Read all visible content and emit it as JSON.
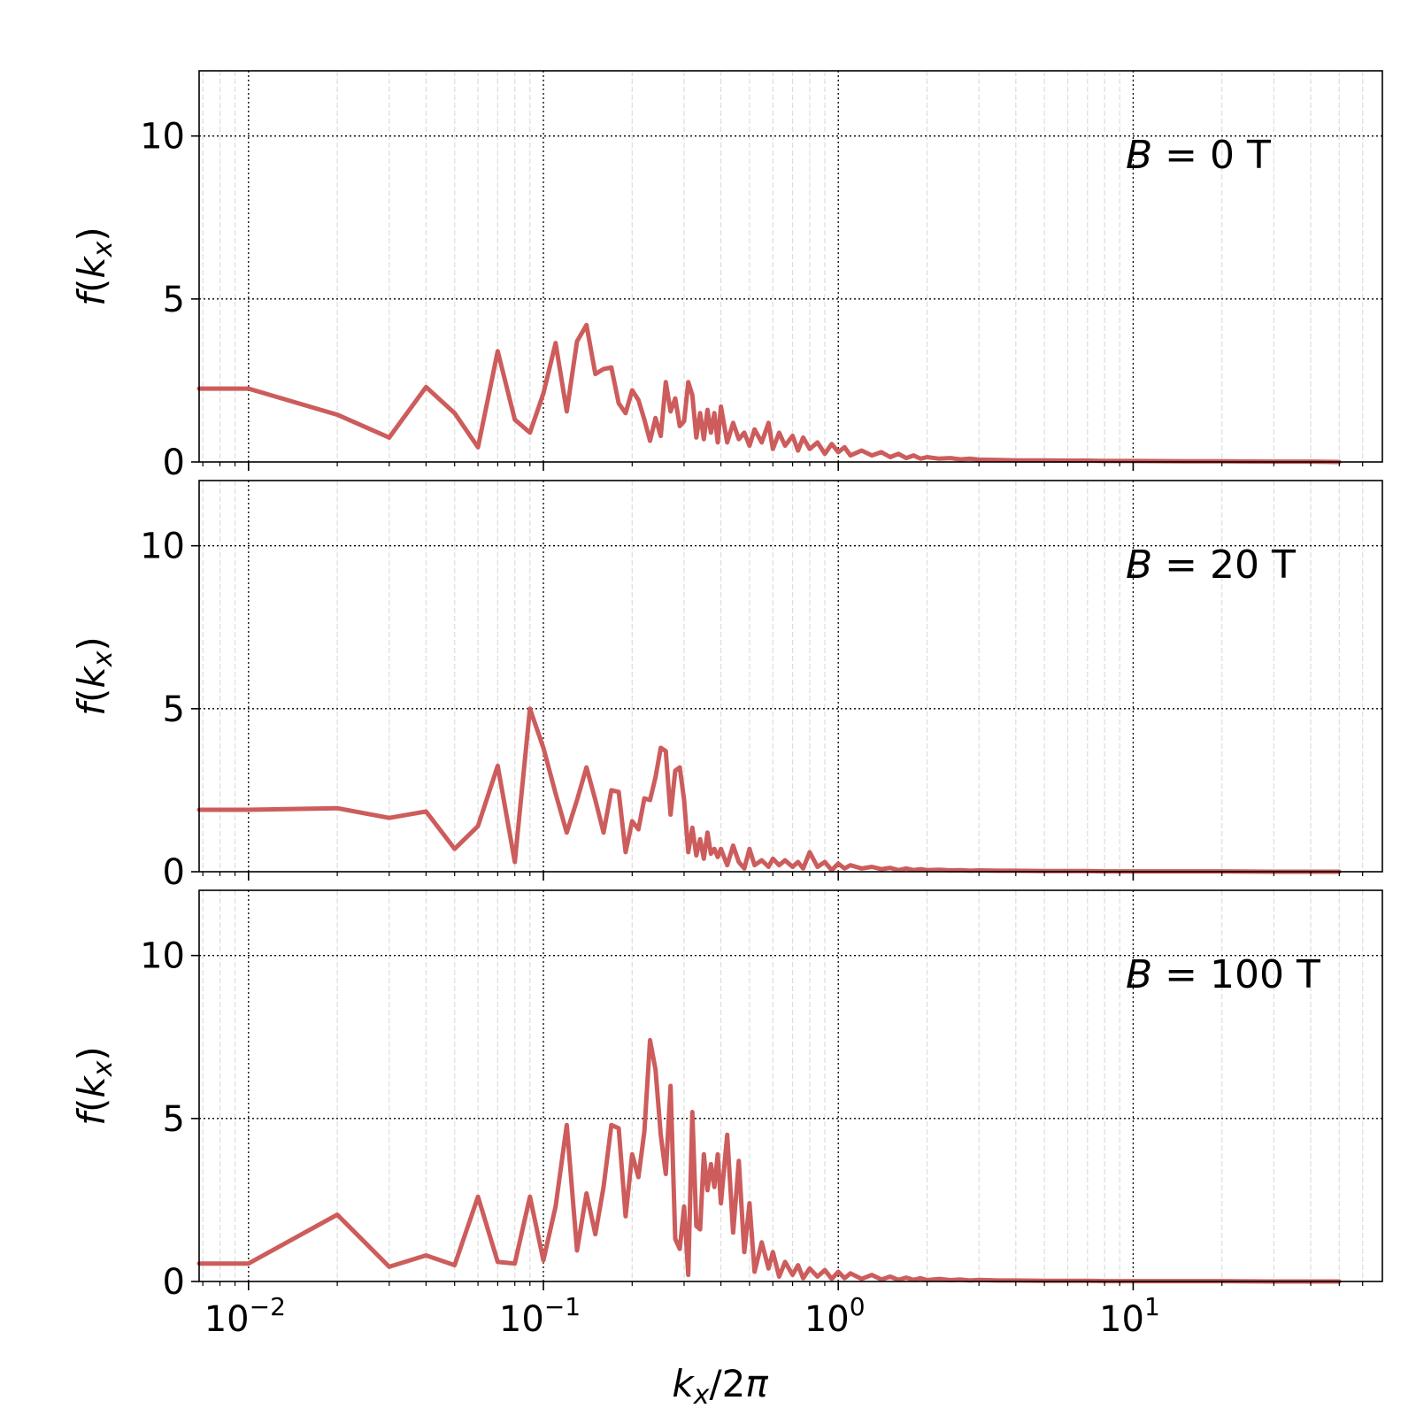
{
  "chart_data": {
    "type": "line",
    "xscale": "log",
    "xlim": [
      0.0068,
      70
    ],
    "xlabel_parts": [
      "k",
      "x",
      "/2",
      "π"
    ],
    "x_ticks": [
      {
        "value": 0.01,
        "base": "10",
        "exp": "−2"
      },
      {
        "value": 0.1,
        "base": "10",
        "exp": "−1"
      },
      {
        "value": 1,
        "base": "10",
        "exp": "0"
      },
      {
        "value": 10,
        "base": "10",
        "exp": "1"
      }
    ],
    "ylabel_parts": [
      "f",
      "(",
      "k",
      "x",
      ")"
    ],
    "ylim": [
      0,
      12
    ],
    "y_ticks": [
      0,
      5,
      10
    ],
    "grid": true,
    "line_color": "#cd5c5c",
    "panels": [
      {
        "annotation": {
          "var": "B",
          "rest": " = 0 T"
        },
        "x": [
          0.0068,
          0.01,
          0.02,
          0.03,
          0.04,
          0.05,
          0.06,
          0.07,
          0.08,
          0.09,
          0.1,
          0.11,
          0.12,
          0.13,
          0.14,
          0.15,
          0.16,
          0.17,
          0.18,
          0.19,
          0.2,
          0.21,
          0.22,
          0.23,
          0.24,
          0.25,
          0.26,
          0.27,
          0.28,
          0.29,
          0.3,
          0.31,
          0.32,
          0.33,
          0.34,
          0.35,
          0.36,
          0.37,
          0.38,
          0.39,
          0.4,
          0.42,
          0.44,
          0.46,
          0.48,
          0.5,
          0.52,
          0.55,
          0.58,
          0.6,
          0.63,
          0.66,
          0.7,
          0.73,
          0.76,
          0.8,
          0.85,
          0.9,
          0.95,
          1.0,
          1.05,
          1.1,
          1.2,
          1.3,
          1.4,
          1.5,
          1.6,
          1.7,
          1.8,
          1.9,
          2.0,
          2.2,
          2.4,
          2.6,
          2.8,
          3.0,
          3.5,
          4.0,
          5.0,
          6.0,
          7.0,
          8.0,
          10.0,
          15.0,
          20.0,
          30.0,
          40.0,
          50.0
        ],
        "y": [
          2.25,
          2.25,
          1.45,
          0.75,
          2.3,
          1.5,
          0.45,
          3.4,
          1.3,
          0.9,
          2.1,
          3.65,
          1.55,
          3.7,
          4.2,
          2.7,
          2.85,
          2.9,
          1.8,
          1.5,
          2.2,
          1.9,
          1.3,
          0.65,
          1.35,
          0.8,
          2.45,
          1.55,
          1.95,
          1.1,
          1.25,
          2.45,
          2.05,
          0.75,
          1.5,
          0.7,
          1.6,
          0.9,
          1.5,
          0.6,
          1.7,
          0.6,
          1.2,
          0.7,
          0.9,
          0.5,
          1.0,
          0.6,
          1.2,
          0.4,
          0.9,
          0.5,
          0.8,
          0.35,
          0.75,
          0.4,
          0.6,
          0.25,
          0.55,
          0.3,
          0.45,
          0.2,
          0.35,
          0.2,
          0.3,
          0.15,
          0.25,
          0.12,
          0.2,
          0.1,
          0.15,
          0.1,
          0.12,
          0.08,
          0.1,
          0.07,
          0.06,
          0.05,
          0.05,
          0.04,
          0.04,
          0.03,
          0.03,
          0.02,
          0.02,
          0.01,
          0.01,
          0.0
        ]
      },
      {
        "annotation": {
          "var": "B",
          "rest": " = 20 T"
        },
        "x": [
          0.0068,
          0.01,
          0.02,
          0.03,
          0.04,
          0.05,
          0.06,
          0.07,
          0.08,
          0.09,
          0.1,
          0.11,
          0.12,
          0.13,
          0.14,
          0.15,
          0.16,
          0.17,
          0.18,
          0.19,
          0.2,
          0.21,
          0.22,
          0.23,
          0.24,
          0.25,
          0.26,
          0.27,
          0.28,
          0.29,
          0.3,
          0.31,
          0.32,
          0.33,
          0.34,
          0.35,
          0.36,
          0.37,
          0.38,
          0.39,
          0.4,
          0.42,
          0.44,
          0.46,
          0.48,
          0.5,
          0.52,
          0.55,
          0.58,
          0.6,
          0.63,
          0.66,
          0.7,
          0.73,
          0.76,
          0.8,
          0.85,
          0.9,
          0.95,
          1.0,
          1.05,
          1.1,
          1.2,
          1.3,
          1.4,
          1.5,
          1.6,
          1.7,
          1.8,
          1.9,
          2.0,
          2.2,
          2.4,
          2.6,
          2.8,
          3.0,
          3.5,
          4.0,
          5.0,
          6.0,
          7.0,
          8.0,
          10.0,
          15.0,
          20.0,
          30.0,
          40.0,
          50.0
        ],
        "y": [
          1.9,
          1.9,
          1.95,
          1.65,
          1.85,
          0.7,
          1.4,
          3.25,
          0.3,
          5.0,
          3.8,
          2.4,
          1.2,
          2.2,
          3.2,
          2.2,
          1.2,
          2.5,
          2.45,
          0.6,
          1.55,
          1.3,
          2.25,
          2.2,
          2.9,
          3.8,
          3.7,
          1.75,
          3.1,
          3.2,
          2.2,
          0.6,
          1.35,
          0.5,
          1.0,
          0.4,
          1.2,
          0.55,
          0.7,
          0.45,
          0.7,
          0.2,
          0.8,
          0.3,
          0.1,
          0.7,
          0.2,
          0.35,
          0.15,
          0.4,
          0.2,
          0.35,
          0.15,
          0.3,
          0.1,
          0.6,
          0.15,
          0.3,
          0.05,
          0.25,
          0.1,
          0.2,
          0.1,
          0.15,
          0.08,
          0.12,
          0.05,
          0.1,
          0.05,
          0.08,
          0.05,
          0.06,
          0.04,
          0.05,
          0.03,
          0.04,
          0.03,
          0.03,
          0.02,
          0.02,
          0.02,
          0.01,
          0.01,
          0.01,
          0.01,
          0.0,
          0.0,
          0.0
        ]
      },
      {
        "annotation": {
          "var": "B",
          "rest": " = 100 T"
        },
        "x": [
          0.0068,
          0.01,
          0.02,
          0.03,
          0.04,
          0.05,
          0.06,
          0.07,
          0.08,
          0.09,
          0.1,
          0.11,
          0.12,
          0.13,
          0.14,
          0.15,
          0.16,
          0.17,
          0.18,
          0.19,
          0.2,
          0.21,
          0.22,
          0.23,
          0.24,
          0.25,
          0.26,
          0.27,
          0.28,
          0.29,
          0.3,
          0.31,
          0.32,
          0.33,
          0.34,
          0.35,
          0.36,
          0.37,
          0.38,
          0.39,
          0.4,
          0.42,
          0.44,
          0.46,
          0.48,
          0.5,
          0.52,
          0.55,
          0.58,
          0.6,
          0.63,
          0.66,
          0.7,
          0.73,
          0.76,
          0.8,
          0.85,
          0.9,
          0.95,
          1.0,
          1.05,
          1.1,
          1.2,
          1.3,
          1.4,
          1.5,
          1.6,
          1.7,
          1.8,
          1.9,
          2.0,
          2.2,
          2.4,
          2.6,
          2.8,
          3.0,
          3.5,
          4.0,
          5.0,
          6.0,
          7.0,
          8.0,
          10.0,
          15.0,
          20.0,
          30.0,
          40.0,
          50.0
        ],
        "y": [
          0.55,
          0.55,
          2.05,
          0.45,
          0.8,
          0.5,
          2.6,
          0.6,
          0.55,
          2.6,
          0.65,
          2.3,
          4.8,
          0.95,
          2.7,
          1.45,
          2.9,
          4.8,
          4.7,
          2.0,
          3.9,
          3.2,
          4.6,
          7.4,
          6.5,
          4.5,
          3.3,
          6.0,
          1.3,
          1.0,
          2.3,
          0.2,
          5.2,
          1.7,
          1.6,
          3.9,
          2.8,
          3.6,
          2.9,
          3.9,
          2.4,
          4.5,
          1.5,
          3.7,
          0.9,
          2.4,
          0.3,
          1.2,
          0.4,
          0.9,
          0.15,
          0.6,
          0.2,
          0.5,
          0.1,
          0.4,
          0.15,
          0.35,
          0.08,
          0.3,
          0.1,
          0.25,
          0.08,
          0.2,
          0.06,
          0.15,
          0.05,
          0.12,
          0.05,
          0.1,
          0.04,
          0.08,
          0.04,
          0.06,
          0.03,
          0.05,
          0.03,
          0.03,
          0.02,
          0.02,
          0.02,
          0.01,
          0.01,
          0.01,
          0.01,
          0.0,
          0.0,
          0.0
        ]
      }
    ]
  }
}
